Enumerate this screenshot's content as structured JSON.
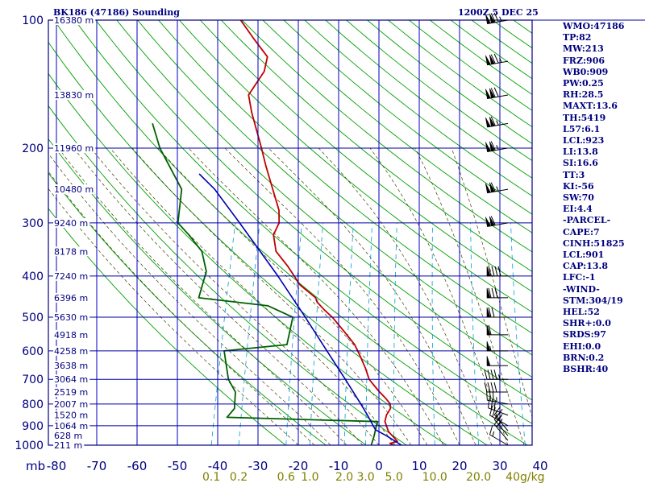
{
  "header": {
    "station": "BK186 (47186) Sounding",
    "time": "1200Z  5 DEC 25"
  },
  "indices": [
    "WMO:47186",
    "TP:82",
    "MW:213",
    "FRZ:906",
    "WB0:909",
    "PW:0.25",
    "RH:28.5",
    "MAXT:13.6",
    "TH:5419",
    "L57:6.1",
    "LCL:923",
    "LI:13.8",
    "SI:16.6",
    "TT:3",
    "KI:-56",
    "SW:70",
    "EI:4.4",
    "-PARCEL-",
    "CAPE:7",
    "CINH:51825",
    "LCL:901",
    "CAP:13.8",
    "LFC:-1",
    "-WIND-",
    "STM:304/19",
    "HEL:52",
    "SHR+:0.0",
    "SRDS:97",
    "EHI:0.0",
    "BRN:0.2",
    "BSHR:40"
  ],
  "colors": {
    "frame": "#000080",
    "isobar": "#0000a0",
    "isotherm": "#0000c0",
    "dry_adiabat": "#00a000",
    "moist_adiabat": "#404000",
    "mixing_ratio": "#00a0d0",
    "temperature": "#c00000",
    "dewpoint": "#006000",
    "parcel": "#0000b0",
    "wind": "#000000"
  },
  "chart_data": {
    "type": "line",
    "title": "BK186 (47186) Sounding",
    "x_axis": {
      "label": "",
      "unit": "°C",
      "ticks": [
        -80,
        -70,
        -60,
        -50,
        -40,
        -30,
        -20,
        -10,
        0,
        10,
        20,
        30,
        40
      ],
      "tick_labels": [
        "-80",
        "-70",
        "-60",
        "-50",
        "-40",
        "-30",
        "-20",
        "-10",
        "0",
        "10",
        "20",
        "30",
        "40"
      ],
      "range": [
        -80,
        40
      ]
    },
    "y_axis": {
      "label": "mb",
      "scale": "log",
      "range": [
        1000,
        100
      ],
      "ticks": [
        100,
        200,
        300,
        400,
        500,
        600,
        700,
        800,
        900,
        1000
      ],
      "tick_labels": [
        "100",
        "200",
        "300",
        "400",
        "500",
        "600",
        "700",
        "800",
        "900",
        "1000"
      ]
    },
    "height_labels": [
      {
        "p": 100,
        "label": "16380 m"
      },
      {
        "p": 150,
        "label": "13830 m"
      },
      {
        "p": 200,
        "label": "11960 m"
      },
      {
        "p": 250,
        "label": "10480 m"
      },
      {
        "p": 300,
        "label": "9240 m"
      },
      {
        "p": 350,
        "label": "8178 m"
      },
      {
        "p": 400,
        "label": "7240 m"
      },
      {
        "p": 450,
        "label": "6396 m"
      },
      {
        "p": 500,
        "label": "5630 m"
      },
      {
        "p": 550,
        "label": "4918 m"
      },
      {
        "p": 600,
        "label": "4258 m"
      },
      {
        "p": 650,
        "label": "3638 m"
      },
      {
        "p": 700,
        "label": "3064 m"
      },
      {
        "p": 750,
        "label": "2519 m"
      },
      {
        "p": 800,
        "label": "2007 m"
      },
      {
        "p": 850,
        "label": "1520 m"
      },
      {
        "p": 900,
        "label": "1064 m"
      },
      {
        "p": 950,
        "label": "628 m"
      },
      {
        "p": 1000,
        "label": "211 m"
      }
    ],
    "mixing_ratio_labels": [
      "0.1",
      "0.2",
      "0.6",
      "1.0",
      "2.0",
      "3.0",
      "5.0",
      "10.0",
      "20.0",
      "40g/kg"
    ],
    "mixing_ratio_values": [
      0.1,
      0.2,
      0.6,
      1.0,
      2.0,
      3.0,
      5.0,
      10.0,
      20.0,
      40.0
    ],
    "series": [
      {
        "key": "temperature",
        "points": [
          [
            1000,
            3.6
          ],
          [
            990,
            2.6
          ],
          [
            980,
            4.3
          ],
          [
            960,
            3.2
          ],
          [
            930,
            1.4
          ],
          [
            880,
            -0.3
          ],
          [
            850,
            -0.4
          ],
          [
            820,
            0.1
          ],
          [
            800,
            -0.3
          ],
          [
            775,
            -1.9
          ],
          [
            745,
            -4.2
          ],
          [
            700,
            -7.4
          ],
          [
            660,
            -9.1
          ],
          [
            620,
            -11.2
          ],
          [
            580,
            -13.6
          ],
          [
            540,
            -17.2
          ],
          [
            500,
            -21.2
          ],
          [
            480,
            -23.8
          ],
          [
            460,
            -26.2
          ],
          [
            450,
            -26.8
          ],
          [
            420,
            -31.6
          ],
          [
            380,
            -36.0
          ],
          [
            350,
            -40.1
          ],
          [
            320,
            -42.0
          ],
          [
            300,
            -41.5
          ],
          [
            280,
            -42.5
          ],
          [
            250,
            -45.6
          ],
          [
            220,
            -49.1
          ],
          [
            200,
            -51.5
          ],
          [
            165,
            -56.6
          ],
          [
            150,
            -58.7
          ],
          [
            132,
            -56.6
          ],
          [
            122,
            -56.9
          ],
          [
            110,
            -61.9
          ],
          [
            100,
            -66.3
          ]
        ]
      },
      {
        "key": "dewpoint",
        "points": [
          [
            1000,
            -1.9
          ],
          [
            950,
            -1.9
          ],
          [
            900,
            -2.1
          ],
          [
            880,
            -2.1
          ],
          [
            860,
            -39.8
          ],
          [
            820,
            -38.6
          ],
          [
            750,
            -39.6
          ],
          [
            700,
            -42.3
          ],
          [
            600,
            -45.5
          ],
          [
            580,
            -30.4
          ],
          [
            500,
            -31.0
          ],
          [
            470,
            -38.0
          ],
          [
            450,
            -55.8
          ],
          [
            390,
            -55.9
          ],
          [
            350,
            -58.5
          ],
          [
            320,
            -63.0
          ],
          [
            300,
            -66.6
          ],
          [
            250,
            -68.2
          ],
          [
            200,
            -76.7
          ],
          [
            175,
            -80.4
          ]
        ]
      },
      {
        "key": "parcel",
        "points": [
          [
            1000,
            5.6
          ],
          [
            950,
            1.1
          ],
          [
            920,
            -2.0
          ],
          [
            900,
            -2.9
          ],
          [
            850,
            -5.1
          ],
          [
            800,
            -7.6
          ],
          [
            700,
            -13.3
          ],
          [
            600,
            -20.0
          ],
          [
            500,
            -27.9
          ],
          [
            400,
            -37.8
          ],
          [
            300,
            -51.3
          ],
          [
            250,
            -60.0
          ],
          [
            230,
            -65.0
          ]
        ]
      }
    ],
    "wind_barbs": [
      {
        "p": 1000,
        "dir": 300,
        "spd": 15
      },
      {
        "p": 975,
        "dir": 320,
        "spd": 20
      },
      {
        "p": 950,
        "dir": 320,
        "spd": 25
      },
      {
        "p": 925,
        "dir": 320,
        "spd": 25
      },
      {
        "p": 900,
        "dir": 300,
        "spd": 25
      },
      {
        "p": 850,
        "dir": 290,
        "spd": 30
      },
      {
        "p": 800,
        "dir": 280,
        "spd": 35
      },
      {
        "p": 750,
        "dir": 270,
        "spd": 40
      },
      {
        "p": 700,
        "dir": 270,
        "spd": 45
      },
      {
        "p": 650,
        "dir": 270,
        "spd": 50
      },
      {
        "p": 600,
        "dir": 270,
        "spd": 55
      },
      {
        "p": 550,
        "dir": 270,
        "spd": 60
      },
      {
        "p": 500,
        "dir": 270,
        "spd": 70
      },
      {
        "p": 450,
        "dir": 270,
        "spd": 80
      },
      {
        "p": 400,
        "dir": 270,
        "spd": 90
      },
      {
        "p": 300,
        "dir": 260,
        "spd": 110
      },
      {
        "p": 250,
        "dir": 260,
        "spd": 115
      },
      {
        "p": 200,
        "dir": 260,
        "spd": 115
      },
      {
        "p": 175,
        "dir": 260,
        "spd": 115
      },
      {
        "p": 150,
        "dir": 260,
        "spd": 120
      },
      {
        "p": 125,
        "dir": 260,
        "spd": 125
      },
      {
        "p": 100,
        "dir": 260,
        "spd": 125
      }
    ]
  }
}
